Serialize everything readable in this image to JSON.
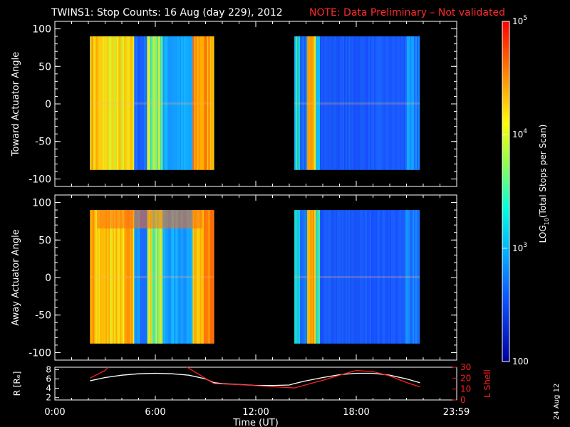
{
  "header": {
    "title": "TWINS1: Stop Counts: 16 Aug (day 229), 2012",
    "note": "NOTE: Data Preliminary – Not validated",
    "note_color": "#ff2020"
  },
  "side_date": "24 Aug 12",
  "chart_data": [
    {
      "type": "heatmap",
      "panel": "top",
      "ylabel": "Toward Actuator Angle",
      "ylim": [
        -110,
        110
      ],
      "yticks": [
        "100",
        "50",
        "0",
        "-50",
        "-100"
      ],
      "xlim_hours": [
        0,
        24
      ],
      "data_blocks_hours": [
        [
          2.1,
          9.5
        ],
        [
          14.3,
          21.8
        ]
      ],
      "data_angle_range": [
        -88,
        90
      ],
      "color_scale": "log10 counts"
    },
    {
      "type": "heatmap",
      "panel": "middle",
      "ylabel": "Away Actuator Angle",
      "ylim": [
        -110,
        110
      ],
      "yticks": [
        "100",
        "50",
        "0",
        "-50",
        "-100"
      ],
      "xlim_hours": [
        0,
        24
      ],
      "data_blocks_hours": [
        [
          2.1,
          9.5
        ],
        [
          14.3,
          21.8
        ]
      ],
      "data_angle_range": [
        -88,
        90
      ],
      "color_scale": "log10 counts"
    },
    {
      "type": "line",
      "panel": "bottom",
      "xlabel": "Time (UT)",
      "xticks": [
        "0:00",
        "6:00",
        "12:00",
        "18:00",
        "23:59"
      ],
      "xtick_hours": [
        0,
        6,
        12,
        18,
        23.98
      ],
      "left_axis": {
        "label": "R [Rₑ]",
        "ylim": [
          1.5,
          8.5
        ],
        "ticks": [
          "8",
          "6",
          "4",
          "2"
        ]
      },
      "right_axis": {
        "label": "L Shell",
        "ylim": [
          0,
          30
        ],
        "ticks": [
          "30",
          "20",
          "10",
          "0"
        ],
        "color": "#ff2020"
      },
      "series": [
        {
          "axis": "left",
          "color": "#ffffff",
          "x": [
            2.1,
            3,
            4,
            5,
            6,
            7,
            8,
            9,
            9.5,
            10,
            11,
            12,
            13,
            14,
            14.3,
            15,
            16,
            17,
            18,
            19,
            20,
            21,
            21.8
          ],
          "y": [
            5.6,
            6.3,
            6.8,
            7.1,
            7.2,
            7.1,
            6.8,
            6.0,
            5.2,
            5.0,
            4.8,
            4.6,
            4.6,
            4.7,
            5.0,
            5.6,
            6.3,
            6.9,
            7.2,
            7.2,
            6.8,
            6.0,
            5.2
          ]
        },
        {
          "axis": "right",
          "color": "#ff2020",
          "x": [
            2.1,
            3,
            3.4,
            7.5,
            7.9,
            9.5,
            11,
            14.3,
            16,
            17.5,
            18,
            19,
            20,
            21,
            21.8
          ],
          "y": [
            20,
            27,
            34,
            34,
            30,
            15,
            14,
            11,
            18,
            25,
            27,
            26,
            22,
            16,
            12
          ]
        }
      ]
    }
  ],
  "colorbar": {
    "label_prefix": "LOG",
    "label_sub": "10",
    "label_suffix": "(Total Stops per Scan)",
    "ticks": [
      {
        "base": "10",
        "exp": "5",
        "pos": 0.0
      },
      {
        "base": "10",
        "exp": "4",
        "pos": 0.333
      },
      {
        "base": "10",
        "exp": "3",
        "pos": 0.667
      },
      {
        "base": "100",
        "exp": "",
        "pos": 1.0
      }
    ]
  }
}
